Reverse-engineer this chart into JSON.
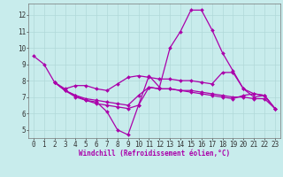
{
  "background_color": "#c8ecec",
  "grid_color": "#b0d8d8",
  "line_color": "#aa00aa",
  "marker": "D",
  "marker_size": 2.0,
  "line_width": 0.9,
  "xlim": [
    -0.5,
    23.5
  ],
  "ylim": [
    4.5,
    12.7
  ],
  "xlabel": "Windchill (Refroidissement éolien,°C)",
  "xlabel_fontsize": 5.5,
  "xticks": [
    0,
    1,
    2,
    3,
    4,
    5,
    6,
    7,
    8,
    9,
    10,
    11,
    12,
    13,
    14,
    15,
    16,
    17,
    18,
    19,
    20,
    21,
    22,
    23
  ],
  "yticks": [
    5,
    6,
    7,
    8,
    9,
    10,
    11,
    12
  ],
  "tick_fontsize": 5.5,
  "series": [
    {
      "x": [
        0,
        1,
        2,
        3,
        4,
        5,
        6,
        7,
        8,
        9,
        10,
        11,
        12,
        13,
        14,
        15,
        16,
        17,
        18,
        19,
        20,
        21,
        22,
        23
      ],
      "y": [
        9.5,
        9.0,
        7.9,
        7.4,
        7.1,
        6.8,
        6.7,
        6.1,
        5.0,
        4.7,
        6.5,
        8.3,
        7.6,
        10.0,
        11.0,
        12.3,
        12.3,
        11.1,
        9.7,
        8.6,
        7.5,
        7.0,
        7.1,
        6.3
      ]
    },
    {
      "x": [
        2,
        3,
        4,
        5,
        6,
        7,
        8,
        9,
        10,
        11,
        12,
        13,
        14,
        15,
        16,
        17,
        18,
        19,
        20,
        21,
        22,
        23
      ],
      "y": [
        7.9,
        7.5,
        7.7,
        7.7,
        7.5,
        7.4,
        7.8,
        8.2,
        8.3,
        8.2,
        8.1,
        8.1,
        8.0,
        8.0,
        7.9,
        7.8,
        8.5,
        8.5,
        7.5,
        7.2,
        7.1,
        6.3
      ]
    },
    {
      "x": [
        2,
        3,
        4,
        5,
        6,
        7,
        8,
        9,
        10,
        11,
        12,
        13,
        14,
        15,
        16,
        17,
        18,
        19,
        20,
        21,
        22,
        23
      ],
      "y": [
        7.9,
        7.4,
        7.1,
        6.9,
        6.8,
        6.7,
        6.6,
        6.5,
        7.1,
        7.6,
        7.5,
        7.5,
        7.4,
        7.4,
        7.3,
        7.2,
        7.1,
        7.0,
        7.0,
        6.9,
        6.9,
        6.3
      ]
    },
    {
      "x": [
        2,
        3,
        4,
        5,
        6,
        7,
        8,
        9,
        10,
        11,
        12,
        13,
        14,
        15,
        16,
        17,
        18,
        19,
        20,
        21,
        22,
        23
      ],
      "y": [
        7.9,
        7.4,
        7.0,
        6.8,
        6.6,
        6.5,
        6.4,
        6.3,
        6.5,
        7.6,
        7.5,
        7.5,
        7.4,
        7.3,
        7.2,
        7.1,
        7.0,
        6.9,
        7.1,
        7.2,
        7.1,
        6.3
      ]
    }
  ]
}
